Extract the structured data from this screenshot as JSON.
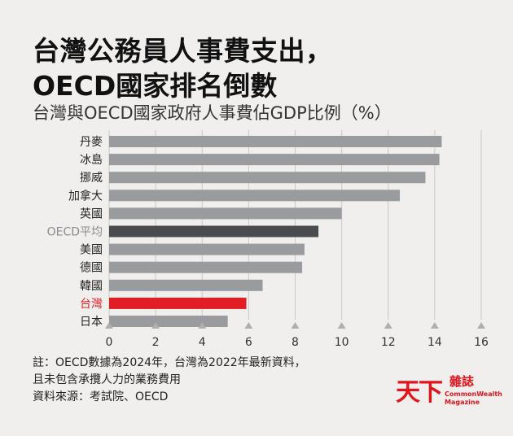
{
  "header": {
    "title_line1": "台灣公務員人事費支出，",
    "title_line2": "OECD國家排名倒數",
    "subtitle": "台灣與OECD國家政府人事費佔GDP比例（%）"
  },
  "chart_data": {
    "type": "bar",
    "orientation": "horizontal",
    "title": "台灣公務員人事費支出，OECD國家排名倒數",
    "subtitle": "台灣與OECD國家政府人事費佔GDP比例（%）",
    "categories": [
      "丹麥",
      "冰島",
      "挪威",
      "加拿大",
      "英國",
      "OECD平均",
      "美國",
      "德國",
      "韓國",
      "台灣",
      "日本"
    ],
    "values": [
      14.3,
      14.2,
      13.6,
      12.5,
      10.0,
      9.0,
      8.4,
      8.3,
      6.6,
      5.9,
      5.1
    ],
    "xlim": [
      0,
      16
    ],
    "xticks": [
      0,
      2,
      4,
      6,
      8,
      10,
      12,
      14,
      16
    ],
    "grid": true,
    "highlight": {
      "OECD平均": "#4a4b4e",
      "台灣": "#e01e24"
    },
    "default_bar_color": "#9a9b9e",
    "label_colors": {
      "OECD平均": "#8a8b8e",
      "台灣": "#e01e24"
    }
  },
  "notes": {
    "line1": "註：OECD數據為2024年，台灣為2022年最新資料，",
    "line2": "且未包含承攬人力的業務費用",
    "source": "資料來源：考試院、OECD"
  },
  "logo": {
    "main": "天下",
    "side": "雜誌",
    "en_line1": "CommonWealth",
    "en_line2": "Magazine",
    "color": "#e1141c"
  }
}
